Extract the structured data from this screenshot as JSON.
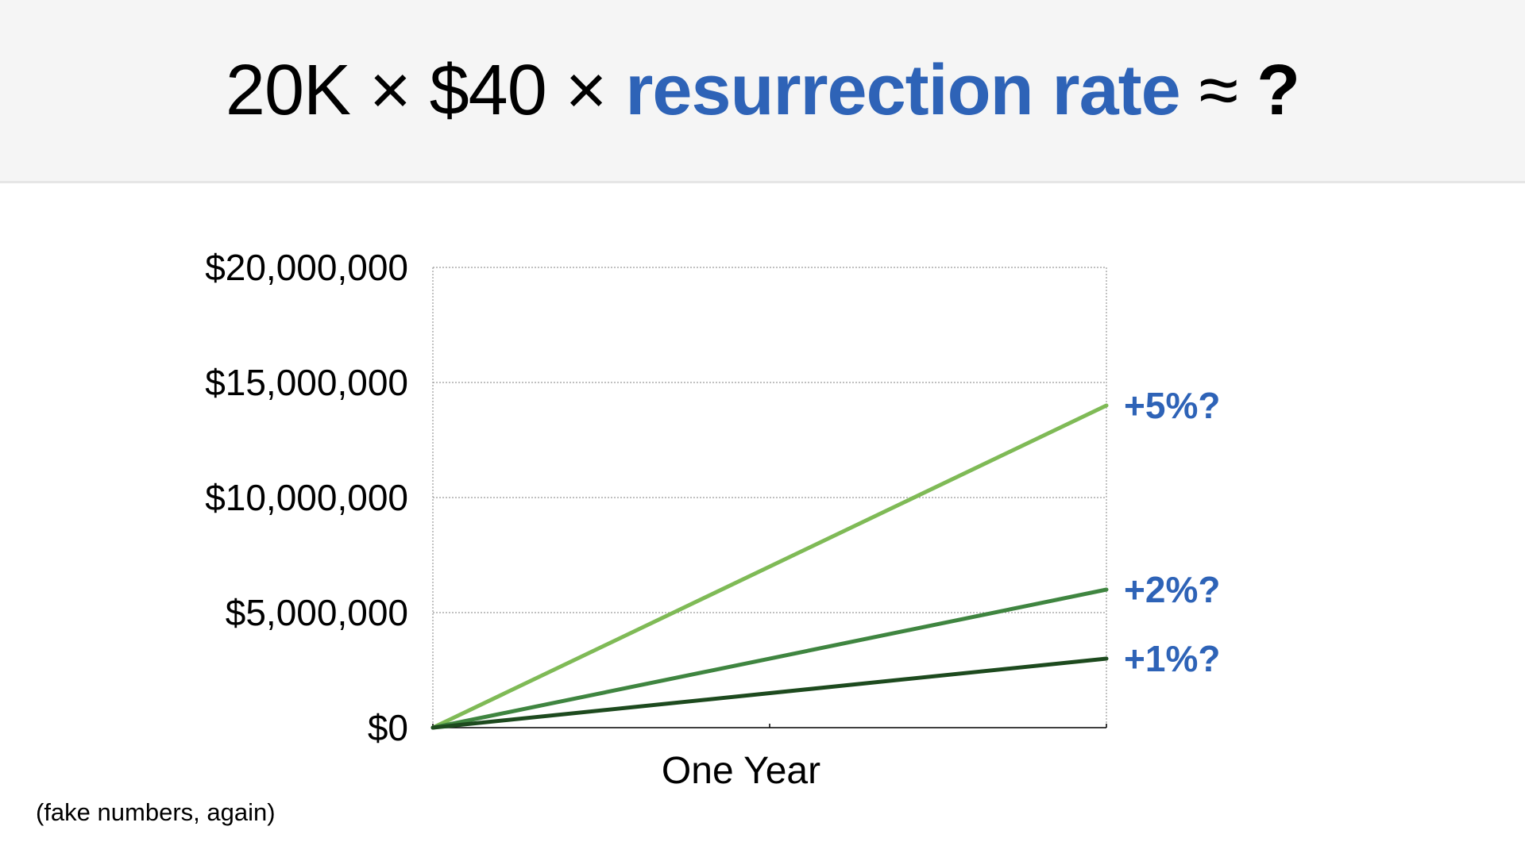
{
  "title": {
    "prefix": "20K × $40 × ",
    "highlight": "resurrection rate",
    "approx": " ≈ ",
    "question": "?",
    "highlight_color": "#2e63b7"
  },
  "footnote": "(fake numbers, again)",
  "chart_data": {
    "type": "line",
    "x": [
      0,
      1
    ],
    "xlabel": "One Year",
    "ylabel": "",
    "ylim": [
      0,
      20000000
    ],
    "yticks": [
      0,
      5000000,
      10000000,
      15000000,
      20000000
    ],
    "ytick_labels": [
      "$0",
      "$5,000,000",
      "$10,000,000",
      "$15,000,000",
      "$20,000,000"
    ],
    "grid": true,
    "label_color": "#2e63b7",
    "series": [
      {
        "name": "+5%?",
        "values": [
          0,
          14000000
        ],
        "color": "#7fba56"
      },
      {
        "name": "+2%?",
        "values": [
          0,
          6000000
        ],
        "color": "#3f8540"
      },
      {
        "name": "+1%?",
        "values": [
          0,
          3000000
        ],
        "color": "#1d4a1e"
      }
    ]
  }
}
